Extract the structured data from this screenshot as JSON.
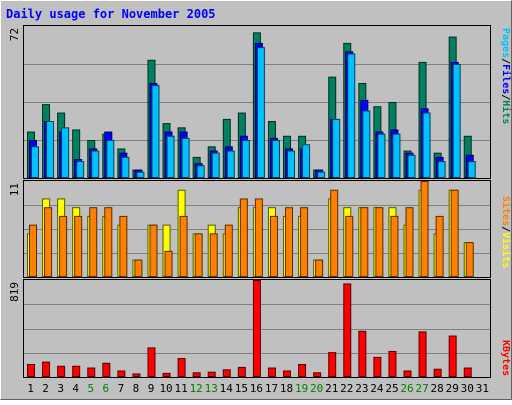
{
  "chart_data": {
    "type": "bar",
    "title": "Daily usage for November 2005",
    "categories": [
      "1",
      "2",
      "3",
      "4",
      "5",
      "6",
      "7",
      "8",
      "9",
      "10",
      "11",
      "12",
      "13",
      "14",
      "15",
      "16",
      "17",
      "18",
      "19",
      "20",
      "21",
      "22",
      "23",
      "24",
      "25",
      "26",
      "27",
      "28",
      "29",
      "30",
      "31"
    ],
    "weekend_days": [
      "5",
      "6",
      "12",
      "13",
      "19",
      "20",
      "26",
      "27"
    ],
    "panels": [
      {
        "key": "top",
        "max_label": "72",
        "ylim": [
          0,
          72
        ],
        "legend": [
          {
            "text": "Pages",
            "color": "#00c0ff"
          },
          {
            "text": "/",
            "color": "#000000"
          },
          {
            "text": "Files",
            "color": "#0000ff"
          },
          {
            "text": "/",
            "color": "#000000"
          },
          {
            "text": "Hits",
            "color": "#008060"
          }
        ],
        "series": [
          {
            "name": "Hits",
            "color": "#008060",
            "values": [
              22,
              35,
              31,
              23,
              18,
              21,
              14,
              4,
              56,
              26,
              24,
              10,
              15,
              28,
              31,
              69,
              27,
              20,
              20,
              4,
              48,
              64,
              45,
              34,
              36,
              13,
              55,
              12,
              67,
              20,
              0
            ]
          },
          {
            "name": "Files",
            "color": "#0000ff",
            "values": [
              18,
              27,
              22,
              9,
              14,
              22,
              12,
              4,
              45,
              22,
              22,
              7,
              13,
              15,
              20,
              64,
              19,
              14,
              14,
              4,
              28,
              60,
              37,
              22,
              23,
              12,
              33,
              10,
              55,
              11,
              0
            ]
          },
          {
            "name": "Pages",
            "color": "#00c0ff",
            "values": [
              15,
              27,
              24,
              8,
              13,
              18,
              10,
              3,
              44,
              20,
              19,
              6,
              12,
              13,
              18,
              62,
              18,
              13,
              16,
              3,
              28,
              59,
              32,
              21,
              21,
              11,
              31,
              8,
              54,
              8,
              0
            ]
          }
        ]
      },
      {
        "key": "middle",
        "max_label": "11",
        "ylim": [
          0,
          11
        ],
        "legend": [
          {
            "text": "Sites",
            "color": "#ff8000"
          },
          {
            "text": "/",
            "color": "#000000"
          },
          {
            "text": "Visits",
            "color": "#ffff00"
          }
        ],
        "series": [
          {
            "name": "Visits",
            "color": "#ffff00",
            "values": [
              5,
              9,
              9,
              8,
              7,
              7,
              6,
              2,
              6,
              6,
              10,
              5,
              6,
              5,
              8,
              8,
              8,
              7,
              7,
              2,
              9,
              8,
              8,
              8,
              8,
              6,
              10,
              5,
              10,
              4,
              0
            ]
          },
          {
            "name": "Sites",
            "color": "#ff8000",
            "values": [
              6,
              8,
              7,
              7,
              8,
              8,
              7,
              2,
              6,
              3,
              7,
              5,
              5,
              6,
              9,
              9,
              7,
              8,
              8,
              2,
              10,
              7,
              8,
              8,
              7,
              8,
              11,
              7,
              10,
              4,
              0
            ]
          }
        ]
      },
      {
        "key": "bottom",
        "max_label": "819",
        "ylim": [
          0,
          819
        ],
        "legend": [
          {
            "text": "KBytes",
            "color": "#ff0000"
          }
        ],
        "series": [
          {
            "name": "KBytes",
            "color": "#ff0000",
            "values": [
              110,
              130,
              95,
              95,
              80,
              120,
              55,
              30,
              250,
              35,
              160,
              40,
              45,
              65,
              85,
              819,
              80,
              55,
              110,
              40,
              210,
              790,
              390,
              170,
              220,
              55,
              385,
              70,
              350,
              80,
              0
            ]
          }
        ]
      }
    ]
  }
}
